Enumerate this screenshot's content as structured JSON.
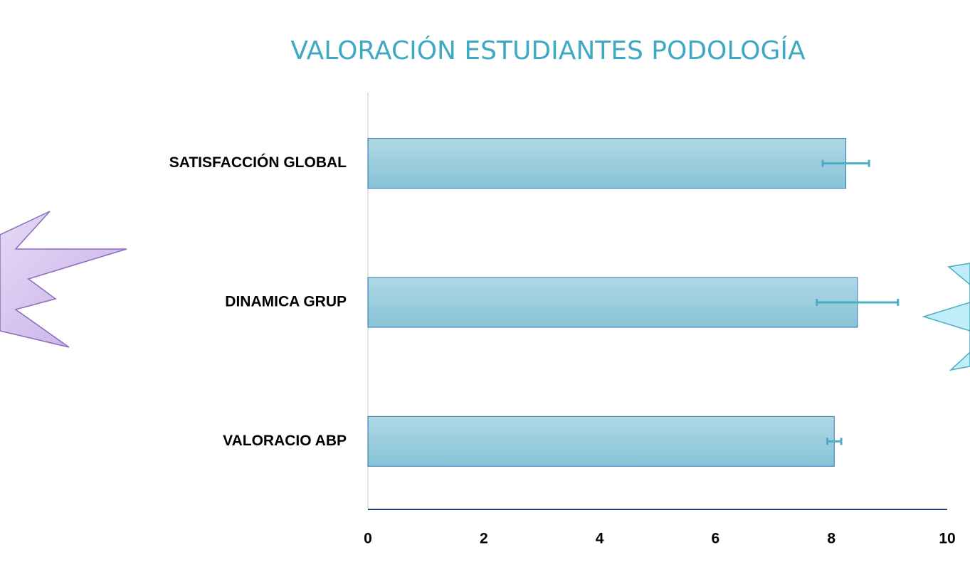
{
  "chart_data": {
    "type": "hbar",
    "title": "VALORACIÓN ESTUDIANTES  PODOLOGÍA",
    "categories": [
      "SATISFACCIÓN GLOBAL",
      "DINAMICA GRUP",
      "VALORACIO ABP"
    ],
    "values": [
      8.25,
      8.45,
      8.05
    ],
    "errors": [
      0.4,
      0.7,
      0.12
    ],
    "color": "#92cddc",
    "error_color": "#4bacc6",
    "xlim": [
      0,
      10
    ],
    "xticks": [
      0,
      2,
      4,
      6,
      8,
      10
    ],
    "grid": false
  }
}
